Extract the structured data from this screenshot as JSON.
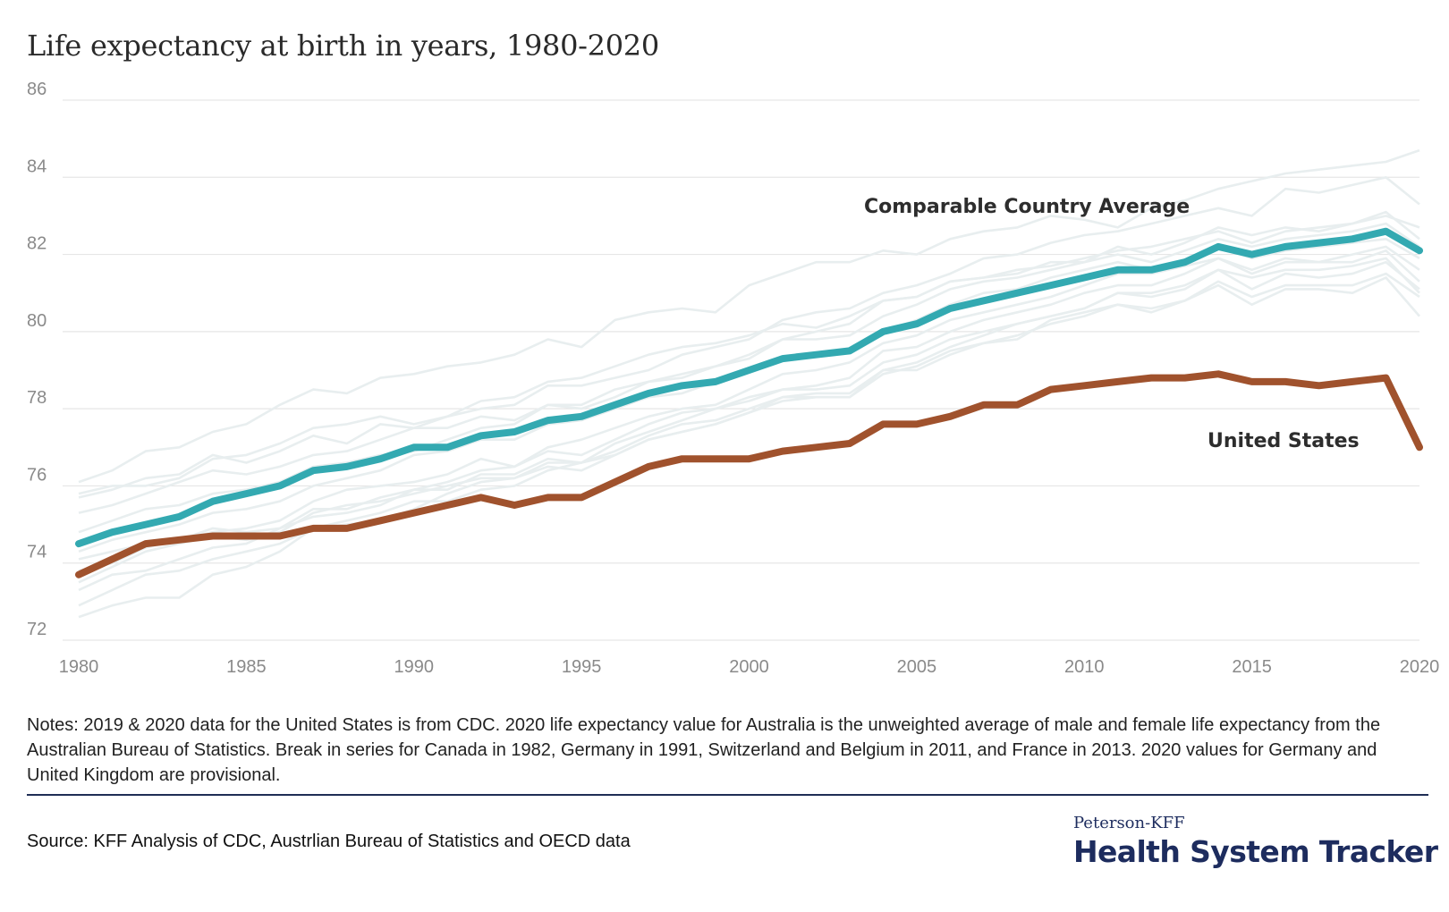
{
  "title": "Life expectancy at birth in years, 1980-2020",
  "notes": "Notes: 2019 & 2020 data for the United States is from CDC. 2020 life expectancy value for Australia is the unweighted average of male and female life expectancy from the Australian Bureau of Statistics. Break in series for Canada in 1982, Germany in 1991, Switzerland and Belgium in 2011, and France in 2013. 2020 values for Germany and United Kingdom are provisional.",
  "source": "Source: KFF Analysis of CDC, Austrlian Bureau of Statistics and OECD data",
  "brand": {
    "top": "Peterson-KFF",
    "main": "Health System Tracker"
  },
  "colors": {
    "comparable": "#33a9b1",
    "us": "#a0522d",
    "background_lines": "#e8eeef",
    "grid": "#e6e6e6"
  },
  "chart_data": {
    "type": "line",
    "x": [
      1980,
      1981,
      1982,
      1983,
      1984,
      1985,
      1986,
      1987,
      1988,
      1989,
      1990,
      1991,
      1992,
      1993,
      1994,
      1995,
      1996,
      1997,
      1998,
      1999,
      2000,
      2001,
      2002,
      2003,
      2004,
      2005,
      2006,
      2007,
      2008,
      2009,
      2010,
      2011,
      2012,
      2013,
      2014,
      2015,
      2016,
      2017,
      2018,
      2019,
      2020
    ],
    "xticks": [
      1980,
      1985,
      1990,
      1995,
      2000,
      2005,
      2010,
      2015,
      2020
    ],
    "yticks": [
      72,
      74,
      76,
      78,
      80,
      82,
      84,
      86
    ],
    "ylim": [
      72,
      86
    ],
    "xlim": [
      1980,
      2020
    ],
    "grid": true,
    "series": [
      {
        "name": "Comparable Country Average",
        "values": [
          74.5,
          74.8,
          75.0,
          75.2,
          75.6,
          75.8,
          76.0,
          76.4,
          76.5,
          76.7,
          77.0,
          77.0,
          77.3,
          77.4,
          77.7,
          77.8,
          78.1,
          78.4,
          78.6,
          78.7,
          79.0,
          79.3,
          79.4,
          79.5,
          80.0,
          80.2,
          80.6,
          80.8,
          81.0,
          81.2,
          81.4,
          81.6,
          81.6,
          81.8,
          82.2,
          82.0,
          82.2,
          82.3,
          82.4,
          82.6,
          82.1
        ]
      },
      {
        "name": "United States",
        "values": [
          73.7,
          74.1,
          74.5,
          74.6,
          74.7,
          74.7,
          74.7,
          74.9,
          74.9,
          75.1,
          75.3,
          75.5,
          75.7,
          75.5,
          75.7,
          75.7,
          76.1,
          76.5,
          76.7,
          76.7,
          76.7,
          76.9,
          77.0,
          77.1,
          77.6,
          77.6,
          77.8,
          78.1,
          78.1,
          78.5,
          78.6,
          78.7,
          78.8,
          78.8,
          78.9,
          78.7,
          78.7,
          78.6,
          78.7,
          78.8,
          77.0
        ]
      }
    ],
    "background_series": [
      {
        "values": [
          76.1,
          76.4,
          76.9,
          77.0,
          77.4,
          77.6,
          78.1,
          78.5,
          78.4,
          78.8,
          78.9,
          79.1,
          79.2,
          79.4,
          79.8,
          79.6,
          80.3,
          80.5,
          80.6,
          80.5,
          81.2,
          81.5,
          81.8,
          81.8,
          82.1,
          82.0,
          82.4,
          82.6,
          82.7,
          83.0,
          82.9,
          82.7,
          83.2,
          83.4,
          83.7,
          83.9,
          84.1,
          84.2,
          84.3,
          84.4,
          84.7
        ]
      },
      {
        "values": [
          75.7,
          75.9,
          76.2,
          76.3,
          76.8,
          76.6,
          76.9,
          77.3,
          77.1,
          77.6,
          77.5,
          77.8,
          78.0,
          78.1,
          78.6,
          78.6,
          78.8,
          79.0,
          79.4,
          79.6,
          79.8,
          80.3,
          80.5,
          80.6,
          81.0,
          81.2,
          81.5,
          81.9,
          82.0,
          82.3,
          82.5,
          82.6,
          82.8,
          83.0,
          83.2,
          83.0,
          83.7,
          83.6,
          83.8,
          84.0,
          83.3
        ]
      },
      {
        "values": [
          75.8,
          76.0,
          76.0,
          76.2,
          76.7,
          76.8,
          77.1,
          77.5,
          77.6,
          77.8,
          77.6,
          77.8,
          78.2,
          78.3,
          78.7,
          78.8,
          79.1,
          79.4,
          79.6,
          79.7,
          79.9,
          80.2,
          80.1,
          80.4,
          80.8,
          80.9,
          81.3,
          81.4,
          81.6,
          81.7,
          81.9,
          82.1,
          82.2,
          82.4,
          82.6,
          82.3,
          82.6,
          82.7,
          82.8,
          83.1,
          82.4
        ]
      },
      {
        "values": [
          75.3,
          75.5,
          75.8,
          76.1,
          76.4,
          76.3,
          76.5,
          76.8,
          76.9,
          77.2,
          77.5,
          77.5,
          77.8,
          77.7,
          78.1,
          78.0,
          78.3,
          78.7,
          78.9,
          79.1,
          79.4,
          79.8,
          80.0,
          80.2,
          80.8,
          80.9,
          81.3,
          81.4,
          81.5,
          81.8,
          81.8,
          82.2,
          82.0,
          82.3,
          82.7,
          82.5,
          82.7,
          82.6,
          82.8,
          83.0,
          82.7
        ]
      },
      {
        "values": [
          74.8,
          75.1,
          75.4,
          75.5,
          75.8,
          75.9,
          76.1,
          76.5,
          76.6,
          76.8,
          76.9,
          77.2,
          77.5,
          77.6,
          78.1,
          78.1,
          78.5,
          78.7,
          78.8,
          79.1,
          79.3,
          79.8,
          79.8,
          79.9,
          80.4,
          80.7,
          81.1,
          81.3,
          81.4,
          81.6,
          81.8,
          82.0,
          81.8,
          82.1,
          82.4,
          82.2,
          82.4,
          82.5,
          82.6,
          82.8,
          82.2
        ]
      },
      {
        "values": [
          74.3,
          74.6,
          74.8,
          75.0,
          75.3,
          75.4,
          75.6,
          76.0,
          76.2,
          76.4,
          76.8,
          76.9,
          77.2,
          77.2,
          77.6,
          77.7,
          78.0,
          78.3,
          78.4,
          78.7,
          79.0,
          79.3,
          79.4,
          79.5,
          80.0,
          80.3,
          80.7,
          81.0,
          81.1,
          81.4,
          81.6,
          81.8,
          81.6,
          81.8,
          82.2,
          81.9,
          82.1,
          82.2,
          82.3,
          82.4,
          81.9
        ]
      },
      {
        "values": [
          74.1,
          74.3,
          74.5,
          74.6,
          74.8,
          74.9,
          75.1,
          75.6,
          75.9,
          76.0,
          76.1,
          76.3,
          76.7,
          76.5,
          77.0,
          77.2,
          77.5,
          77.8,
          78.0,
          78.1,
          78.5,
          78.9,
          79.0,
          79.2,
          79.7,
          79.9,
          80.3,
          80.5,
          80.7,
          80.9,
          81.2,
          81.5,
          81.5,
          81.7,
          81.9,
          81.6,
          81.9,
          81.8,
          82.0,
          82.2,
          81.6
        ]
      },
      {
        "values": [
          73.8,
          74.0,
          74.4,
          74.6,
          74.9,
          74.8,
          74.9,
          75.4,
          75.4,
          75.7,
          75.9,
          76.1,
          76.4,
          76.5,
          76.9,
          76.8,
          77.2,
          77.6,
          77.9,
          78.0,
          78.3,
          78.5,
          78.6,
          78.8,
          79.5,
          79.6,
          80.0,
          80.3,
          80.5,
          80.7,
          81.0,
          81.2,
          81.2,
          81.5,
          81.9,
          81.5,
          81.8,
          81.8,
          81.8,
          82.1,
          81.3
        ]
      },
      {
        "values": [
          73.5,
          73.9,
          74.3,
          74.5,
          74.7,
          74.6,
          74.8,
          75.3,
          75.5,
          75.6,
          75.8,
          76.0,
          76.2,
          76.2,
          76.6,
          76.6,
          76.9,
          77.3,
          77.6,
          77.7,
          78.0,
          78.3,
          78.4,
          78.4,
          79.0,
          79.2,
          79.6,
          79.9,
          80.2,
          80.4,
          80.6,
          81.0,
          80.9,
          81.1,
          81.6,
          81.1,
          81.5,
          81.4,
          81.5,
          81.8,
          81.1
        ]
      },
      {
        "values": [
          73.3,
          73.7,
          73.8,
          74.1,
          74.4,
          74.5,
          74.9,
          75.2,
          75.3,
          75.5,
          75.9,
          75.9,
          76.3,
          76.3,
          76.7,
          76.6,
          77.1,
          77.4,
          77.7,
          78.0,
          78.2,
          78.5,
          78.5,
          78.6,
          79.2,
          79.4,
          79.8,
          80.0,
          80.2,
          80.4,
          80.6,
          81.0,
          81.0,
          81.2,
          81.6,
          81.4,
          81.6,
          81.6,
          81.7,
          81.9,
          81.0
        ]
      },
      {
        "values": [
          72.9,
          73.3,
          73.7,
          73.8,
          74.1,
          74.3,
          74.5,
          74.9,
          75.1,
          75.3,
          75.6,
          75.6,
          75.9,
          76.0,
          76.4,
          76.6,
          76.8,
          77.2,
          77.4,
          77.6,
          77.9,
          78.2,
          78.3,
          78.3,
          78.9,
          79.1,
          79.5,
          79.7,
          79.9,
          80.2,
          80.4,
          80.7,
          80.6,
          80.8,
          81.3,
          80.9,
          81.2,
          81.2,
          81.2,
          81.5,
          80.9
        ]
      },
      {
        "values": [
          72.6,
          72.9,
          73.1,
          73.1,
          73.7,
          73.9,
          74.3,
          74.9,
          75.0,
          75.1,
          75.4,
          75.8,
          76.1,
          76.2,
          76.5,
          76.4,
          76.8,
          77.2,
          77.4,
          77.6,
          77.9,
          78.3,
          78.3,
          78.3,
          79.0,
          79.0,
          79.4,
          79.7,
          79.8,
          80.3,
          80.5,
          80.7,
          80.5,
          80.8,
          81.2,
          80.7,
          81.1,
          81.1,
          81.0,
          81.4,
          80.4
        ]
      }
    ]
  },
  "labels": {
    "comparable": "Comparable Country Average",
    "us": "United States"
  }
}
